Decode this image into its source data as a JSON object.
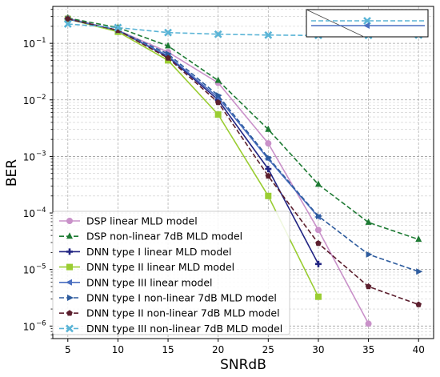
{
  "chart_data": {
    "type": "line",
    "title": "",
    "xlabel": "SNRdB",
    "ylabel": "BER",
    "yscale": "log",
    "xlim": [
      3.5,
      41.5
    ],
    "ylim": [
      6e-07,
      0.45
    ],
    "grid": true,
    "legend_location": "lower-left",
    "x_ticks": [
      "5",
      "10",
      "15",
      "20",
      "25",
      "30",
      "35",
      "40"
    ],
    "x_tick_values": [
      5,
      10,
      15,
      20,
      25,
      30,
      35,
      40
    ],
    "y_ticks": [
      {
        "value": 1e-06,
        "base": "10",
        "exp": "−6"
      },
      {
        "value": 1e-05,
        "base": "10",
        "exp": "−5"
      },
      {
        "value": 0.0001,
        "base": "10",
        "exp": "−4"
      },
      {
        "value": 0.001,
        "base": "10",
        "exp": "−3"
      },
      {
        "value": 0.01,
        "base": "10",
        "exp": "−2"
      },
      {
        "value": 0.1,
        "base": "10",
        "exp": "−1"
      }
    ],
    "series": [
      {
        "name": "DSP linear MLD model",
        "color": "#c991c9",
        "dash": "solid",
        "marker": "circle",
        "x": [
          5,
          10,
          15,
          20,
          25,
          30,
          35
        ],
        "y": [
          0.28,
          0.17,
          0.07,
          0.02,
          0.0017,
          5e-05,
          1.1e-06
        ]
      },
      {
        "name": "DSP non-linear 7dB MLD model",
        "color": "#1d7a33",
        "dash": "dashed",
        "marker": "triangle",
        "x": [
          5,
          10,
          15,
          20,
          25,
          30,
          35,
          40
        ],
        "y": [
          0.28,
          0.19,
          0.09,
          0.022,
          0.003,
          0.00032,
          6.8e-05,
          3.4e-05
        ]
      },
      {
        "name": "DNN type I linear MLD model",
        "color": "#222583",
        "dash": "solid",
        "marker": "plus",
        "x": [
          5,
          10,
          15,
          20,
          25,
          30
        ],
        "y": [
          0.27,
          0.17,
          0.058,
          0.01,
          0.0006,
          1.25e-05
        ]
      },
      {
        "name": "DNN type II linear MLD model",
        "color": "#9acd32",
        "dash": "solid",
        "marker": "square",
        "x": [
          5,
          10,
          15,
          20,
          25,
          30
        ],
        "y": [
          0.27,
          0.16,
          0.05,
          0.0055,
          0.0002,
          3.3e-06
        ]
      },
      {
        "name": "DNN type III linear model",
        "color": "#4a6ec0",
        "dash": "solid",
        "marker": "triangle-left",
        "x": [
          5,
          10,
          15,
          20,
          25,
          30
        ],
        "y": [
          0.27,
          0.17,
          0.06,
          0.011,
          0.0009,
          8.5e-05
        ]
      },
      {
        "name": "DNN type I non-linear 7dB MLD model",
        "color": "#2e5c9e",
        "dash": "dashed",
        "marker": "triangle-right",
        "x": [
          5,
          10,
          15,
          20,
          25,
          30,
          35,
          40
        ],
        "y": [
          0.27,
          0.17,
          0.065,
          0.012,
          0.00095,
          8.8e-05,
          1.85e-05,
          9.2e-06
        ]
      },
      {
        "name": "DNN type II non-linear 7dB MLD model",
        "color": "#5c1f2e",
        "dash": "dashed",
        "marker": "pentagon",
        "x": [
          5,
          10,
          15,
          20,
          25,
          30,
          35,
          40
        ],
        "y": [
          0.27,
          0.17,
          0.055,
          0.009,
          0.00045,
          2.9e-05,
          5e-06,
          2.4e-06
        ]
      },
      {
        "name": "DNN type III non-linear 7dB MLD model",
        "color": "#5ab4d6",
        "dash": "dashed",
        "marker": "x",
        "x": [
          5,
          10,
          15,
          20,
          25,
          30,
          35,
          40
        ],
        "y": [
          0.22,
          0.19,
          0.155,
          0.145,
          0.14,
          0.138,
          0.138,
          0.14
        ]
      }
    ]
  }
}
